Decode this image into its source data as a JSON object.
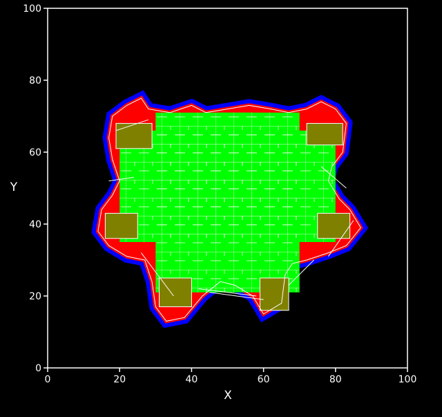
{
  "chart_data": {
    "type": "scatter",
    "title": "",
    "xlabel": "X",
    "ylabel": "Y",
    "xlim": [
      0,
      100
    ],
    "ylim": [
      0,
      100
    ],
    "xticks": [
      "0",
      "20",
      "40",
      "60",
      "80",
      "100"
    ],
    "yticks": [
      "0",
      "20",
      "40",
      "60",
      "80",
      "100"
    ],
    "grid": false,
    "colors": {
      "background": "#000000",
      "axes": "#ffffff",
      "outer_band": "#0000ff",
      "middle_band": "#ff0000",
      "interior": "#00ff00",
      "anchors": "#808000",
      "cell_lines": "#ffffff"
    },
    "anchors": [
      {
        "x0": 19,
        "x1": 29,
        "y0": 61,
        "y1": 68
      },
      {
        "x0": 72,
        "x1": 82,
        "y0": 62,
        "y1": 68
      },
      {
        "x0": 16,
        "x1": 25,
        "y0": 36,
        "y1": 43
      },
      {
        "x0": 75,
        "x1": 84,
        "y0": 36,
        "y1": 43
      },
      {
        "x0": 31,
        "x1": 40,
        "y0": 17,
        "y1": 25
      },
      {
        "x0": 59,
        "x1": 67,
        "y0": 16,
        "y1": 25
      }
    ],
    "interior_cross": {
      "horizontal_bar": {
        "x0": 20,
        "x1": 80,
        "y0": 35,
        "y1": 66
      },
      "vertical_bar": {
        "x0": 30,
        "x1": 70,
        "y0": 21,
        "y1": 71
      },
      "top_notch": {
        "x0": 47,
        "x1": 57,
        "y0": 70,
        "y1": 71
      }
    },
    "outline_path": [
      [
        26,
        75
      ],
      [
        28,
        72
      ],
      [
        34,
        71
      ],
      [
        40,
        73
      ],
      [
        44,
        71
      ],
      [
        50,
        72
      ],
      [
        56,
        73
      ],
      [
        62,
        72
      ],
      [
        67,
        71
      ],
      [
        72,
        72
      ],
      [
        76,
        74
      ],
      [
        80,
        72
      ],
      [
        83,
        68
      ],
      [
        82,
        60
      ],
      [
        79,
        56
      ],
      [
        78,
        52
      ],
      [
        81,
        47
      ],
      [
        84,
        44
      ],
      [
        87,
        39
      ],
      [
        83,
        34
      ],
      [
        78,
        32
      ],
      [
        72,
        30
      ],
      [
        68,
        29
      ],
      [
        66,
        26
      ],
      [
        65,
        18
      ],
      [
        60,
        15
      ],
      [
        57,
        20
      ],
      [
        52,
        23
      ],
      [
        48,
        24
      ],
      [
        43,
        20
      ],
      [
        38,
        14
      ],
      [
        33,
        13
      ],
      [
        30,
        17
      ],
      [
        29,
        24
      ],
      [
        27,
        30
      ],
      [
        22,
        31
      ],
      [
        17,
        34
      ],
      [
        14,
        38
      ],
      [
        15,
        44
      ],
      [
        18,
        48
      ],
      [
        20,
        52
      ],
      [
        18,
        58
      ],
      [
        17,
        64
      ],
      [
        18,
        70
      ],
      [
        22,
        73
      ],
      [
        26,
        75
      ]
    ],
    "extra_lines": [
      [
        [
          28,
          69
        ],
        [
          19,
          66
        ]
      ],
      [
        [
          17,
          52
        ],
        [
          24,
          53
        ]
      ],
      [
        [
          76,
          56
        ],
        [
          83,
          50
        ]
      ],
      [
        [
          85,
          41
        ],
        [
          78,
          31
        ]
      ],
      [
        [
          42,
          22
        ],
        [
          58,
          20
        ]
      ],
      [
        [
          45,
          21
        ],
        [
          60,
          19
        ]
      ],
      [
        [
          26,
          32
        ],
        [
          35,
          20
        ]
      ],
      [
        [
          67,
          23
        ],
        [
          74,
          30
        ]
      ]
    ]
  }
}
